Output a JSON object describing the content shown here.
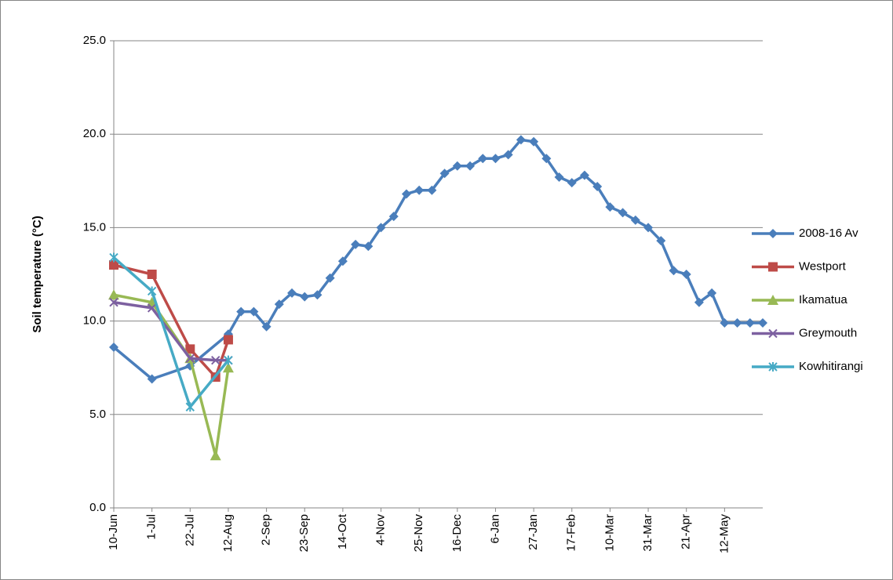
{
  "chart_data": {
    "type": "line",
    "y_label": "Soil temperature (°C)",
    "categories": [
      "10-Jun",
      null,
      null,
      "1-Jul",
      null,
      null,
      "22-Jul",
      null,
      null,
      "12-Aug",
      null,
      null,
      "2-Sep",
      null,
      null,
      "23-Sep",
      null,
      null,
      "14-Oct",
      null,
      null,
      "4-Nov",
      null,
      null,
      "25-Nov",
      null,
      null,
      "16-Dec",
      null,
      null,
      "6-Jan",
      null,
      null,
      "27-Jan",
      null,
      null,
      "17-Feb",
      null,
      null,
      "10-Mar",
      null,
      null,
      "31-Mar",
      null,
      null,
      "21-Apr",
      null,
      null,
      "12-May",
      null,
      null,
      null
    ],
    "ylim": [
      0,
      25
    ],
    "yticks": [
      {
        "value": 0,
        "label": "0.0"
      },
      {
        "value": 5,
        "label": "5.0"
      },
      {
        "value": 10,
        "label": "10.0"
      },
      {
        "value": 15,
        "label": "15.0"
      },
      {
        "value": 20,
        "label": "20.0"
      },
      {
        "value": 25,
        "label": "25.0"
      }
    ],
    "grid": true,
    "legend": "right",
    "connect_gaps": true,
    "series": [
      {
        "name": "2008-16 Av",
        "color": "#4a7ebb",
        "marker": "diamond",
        "values": [
          8.6,
          null,
          null,
          6.9,
          null,
          null,
          7.6,
          null,
          null,
          9.3,
          10.5,
          10.5,
          9.7,
          10.9,
          11.5,
          11.3,
          11.4,
          12.3,
          13.2,
          14.1,
          14.0,
          15.0,
          15.6,
          16.8,
          17.0,
          17.0,
          17.9,
          18.3,
          18.3,
          18.7,
          18.7,
          18.9,
          19.7,
          19.6,
          18.7,
          17.7,
          17.4,
          17.8,
          17.2,
          16.1,
          15.8,
          15.4,
          15.0,
          14.3,
          12.7,
          12.5,
          11.0,
          11.5,
          9.9,
          9.9,
          9.9,
          9.9
        ]
      },
      {
        "name": "Westport",
        "color": "#be4b48",
        "marker": "square",
        "values": [
          13.0,
          null,
          null,
          12.5,
          null,
          null,
          8.5,
          null,
          7.0,
          9.0,
          null,
          null,
          null,
          null,
          null,
          null,
          null,
          null,
          null,
          null,
          null,
          null,
          null,
          null,
          null,
          null,
          null,
          null,
          null,
          null,
          null,
          null,
          null,
          null,
          null,
          null,
          null,
          null,
          null,
          null,
          null,
          null,
          null,
          null,
          null,
          null,
          null,
          null,
          null,
          null,
          null,
          null
        ]
      },
      {
        "name": "Ikamatua",
        "color": "#98b954",
        "marker": "triangle",
        "values": [
          11.4,
          null,
          null,
          11.0,
          null,
          null,
          8.0,
          null,
          2.8,
          7.5,
          null,
          null,
          null,
          null,
          null,
          null,
          null,
          null,
          null,
          null,
          null,
          null,
          null,
          null,
          null,
          null,
          null,
          null,
          null,
          null,
          null,
          null,
          null,
          null,
          null,
          null,
          null,
          null,
          null,
          null,
          null,
          null,
          null,
          null,
          null,
          null,
          null,
          null,
          null,
          null,
          null,
          null
        ]
      },
      {
        "name": "Greymouth",
        "color": "#7d60a0",
        "marker": "x",
        "values": [
          11.0,
          null,
          null,
          10.7,
          null,
          null,
          8.0,
          null,
          7.9,
          7.9,
          null,
          null,
          null,
          null,
          null,
          null,
          null,
          null,
          null,
          null,
          null,
          null,
          null,
          null,
          null,
          null,
          null,
          null,
          null,
          null,
          null,
          null,
          null,
          null,
          null,
          null,
          null,
          null,
          null,
          null,
          null,
          null,
          null,
          null,
          null,
          null,
          null,
          null,
          null,
          null,
          null,
          null
        ]
      },
      {
        "name": "Kowhitirangi",
        "color": "#46aac5",
        "marker": "star",
        "values": [
          13.4,
          null,
          null,
          11.6,
          null,
          null,
          5.4,
          null,
          null,
          7.9,
          null,
          null,
          null,
          null,
          null,
          null,
          null,
          null,
          null,
          null,
          null,
          null,
          null,
          null,
          null,
          null,
          null,
          null,
          null,
          null,
          null,
          null,
          null,
          null,
          null,
          null,
          null,
          null,
          null,
          null,
          null,
          null,
          null,
          null,
          null,
          null,
          null,
          null,
          null,
          null,
          null,
          null
        ]
      }
    ]
  }
}
